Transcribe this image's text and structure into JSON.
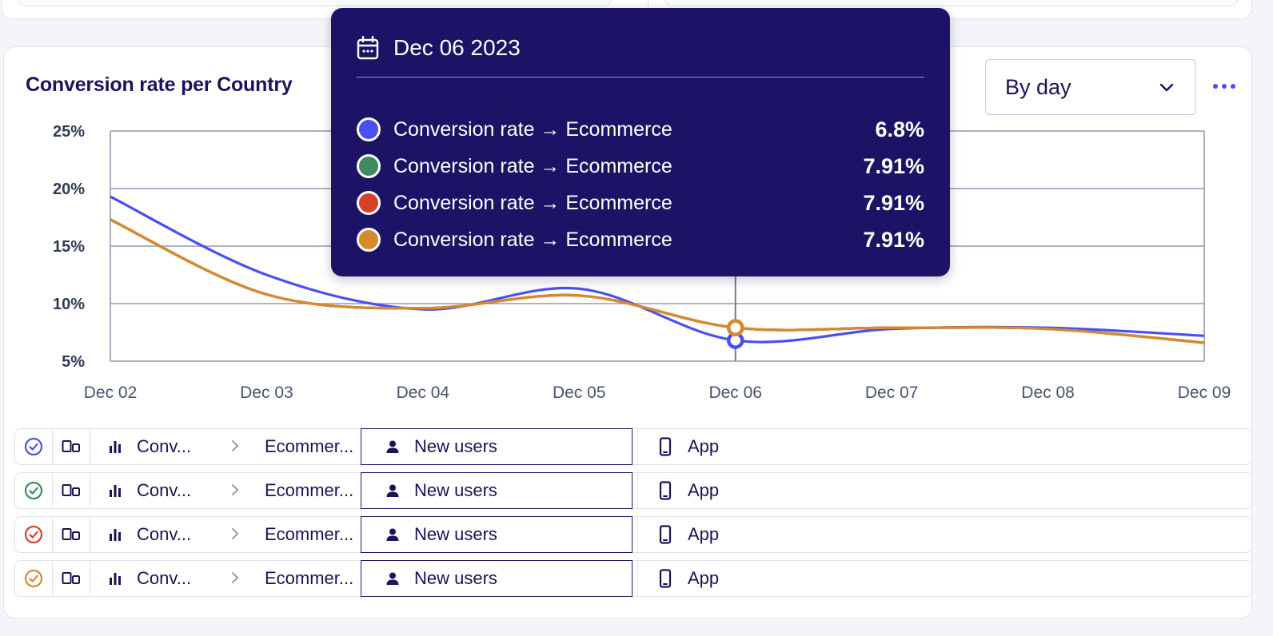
{
  "chart_title": "Conversion rate per Country",
  "dropdown": {
    "selected": "By day"
  },
  "tooltip": {
    "date": "Dec 06 2023",
    "rows": [
      {
        "label": "Conversion rate → Ecommerce",
        "value": "6.8%",
        "color": "#4a4ff0"
      },
      {
        "label": "Conversion rate → Ecommerce",
        "value": "7.91%",
        "color": "#3f8a5e"
      },
      {
        "label": "Conversion rate → Ecommerce",
        "value": "7.91%",
        "color": "#d8402a"
      },
      {
        "label": "Conversion rate → Ecommerce",
        "value": "7.91%",
        "color": "#d68a2e"
      }
    ]
  },
  "chart_data": {
    "type": "line",
    "categories": [
      "Dec 02",
      "Dec 03",
      "Dec 04",
      "Dec 05",
      "Dec 06",
      "Dec 07",
      "Dec 08",
      "Dec 09"
    ],
    "y_ticks": [
      "25%",
      "20%",
      "15%",
      "10%",
      "5%"
    ],
    "ylim": [
      5,
      25
    ],
    "grid": true,
    "series": [
      {
        "color": "#4a4ff0",
        "values": [
          19.3,
          12.5,
          9.5,
          11.3,
          6.8,
          7.8,
          7.9,
          7.2
        ]
      },
      {
        "color": "#3f8a5e",
        "values": [
          17.3,
          10.8,
          9.6,
          10.7,
          7.91,
          7.9,
          7.8,
          6.6
        ]
      },
      {
        "color": "#d8402a",
        "values": [
          17.3,
          10.8,
          9.6,
          10.7,
          7.91,
          7.9,
          7.8,
          6.6
        ]
      },
      {
        "color": "#d68a2e",
        "values": [
          17.3,
          10.8,
          9.6,
          10.7,
          7.91,
          7.9,
          7.8,
          6.6
        ]
      }
    ],
    "highlight_index": 4
  },
  "rows": [
    {
      "status_color": "#4a4ff0",
      "metric": "Conv...",
      "submetric": "Ecommer...",
      "segment": "New users",
      "platform": "App"
    },
    {
      "status_color": "#3f8a5e",
      "metric": "Conv...",
      "submetric": "Ecommer...",
      "segment": "New users",
      "platform": "App"
    },
    {
      "status_color": "#d8402a",
      "metric": "Conv...",
      "submetric": "Ecommer...",
      "segment": "New users",
      "platform": "App"
    },
    {
      "status_color": "#d68a2e",
      "metric": "Conv...",
      "submetric": "Ecommer...",
      "segment": "New users",
      "platform": "App"
    }
  ],
  "colors": {
    "navy": "#1c1366",
    "grid": "#8f9bb0",
    "accent": "#4a4ff0"
  }
}
